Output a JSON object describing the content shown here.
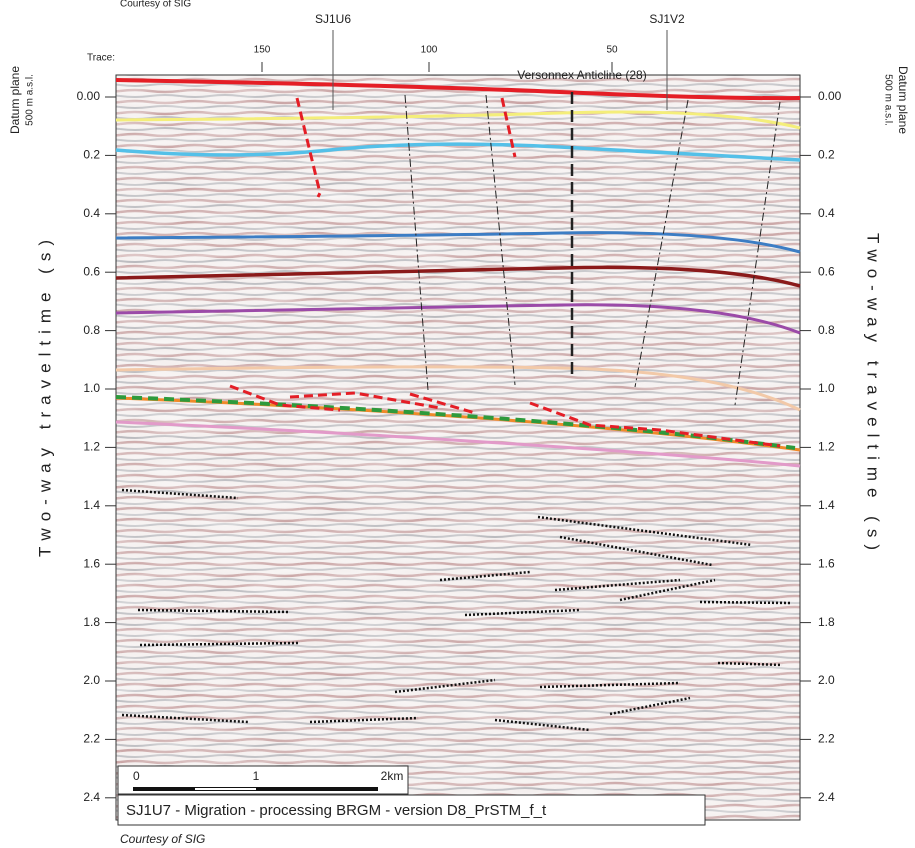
{
  "header": {
    "credit_top": "Courtesy of SIG",
    "wells": [
      "SJ1U6",
      "SJ1V2"
    ],
    "trace_label": "Trace:",
    "traces": [
      "150",
      "100",
      "50"
    ]
  },
  "axes": {
    "datum_left": [
      "Datum plane",
      "500 m a.s.l."
    ],
    "datum_right": [
      "Datum plane",
      "500 m a.s.l."
    ],
    "title": "Two-way traveltime (s)",
    "ticks": [
      "0.00",
      "0.2",
      "0.4",
      "0.6",
      "0.8",
      "1.0",
      "1.2",
      "1.4",
      "1.6",
      "1.8",
      "2.0",
      "2.2",
      "2.4"
    ]
  },
  "annotation": "Versonnex Anticline (28)",
  "scale_bar": [
    "0",
    "1",
    "2km"
  ],
  "caption": "SJ1U7 - Migration - processing BRGM - version D8_PrSTM_f_t",
  "footer": "Courtesy of SIG"
}
